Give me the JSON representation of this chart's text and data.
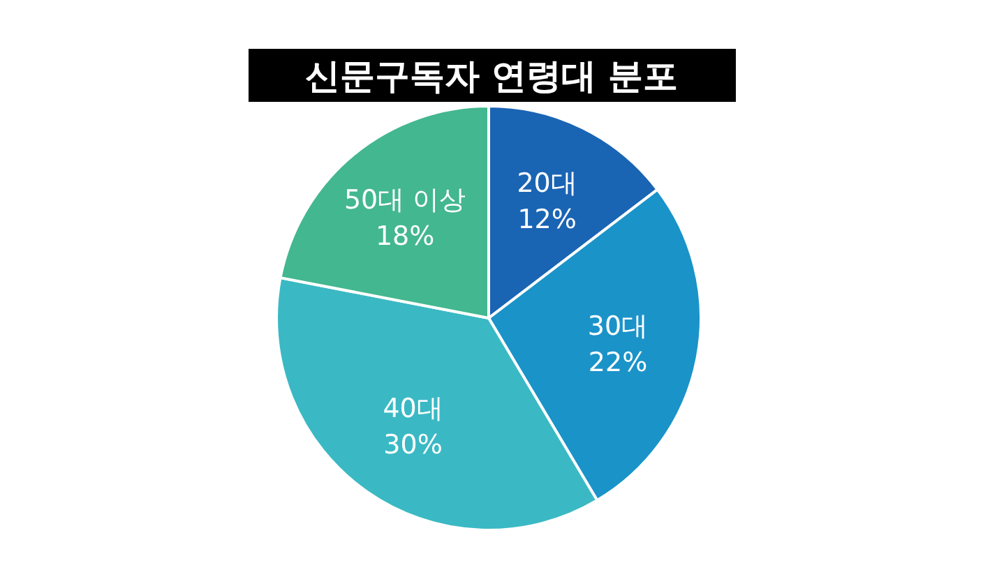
{
  "chart_data": {
    "type": "pie",
    "title": "신문구독자 연령대 분포",
    "categories": [
      "20대",
      "30대",
      "40대",
      "50대 이상"
    ],
    "values": [
      12,
      22,
      30,
      18
    ],
    "value_labels": [
      "12%",
      "22%",
      "30%",
      "18%"
    ],
    "colors": [
      "#1a64b4",
      "#1a93c8",
      "#3ab9c4",
      "#43b78f"
    ]
  }
}
